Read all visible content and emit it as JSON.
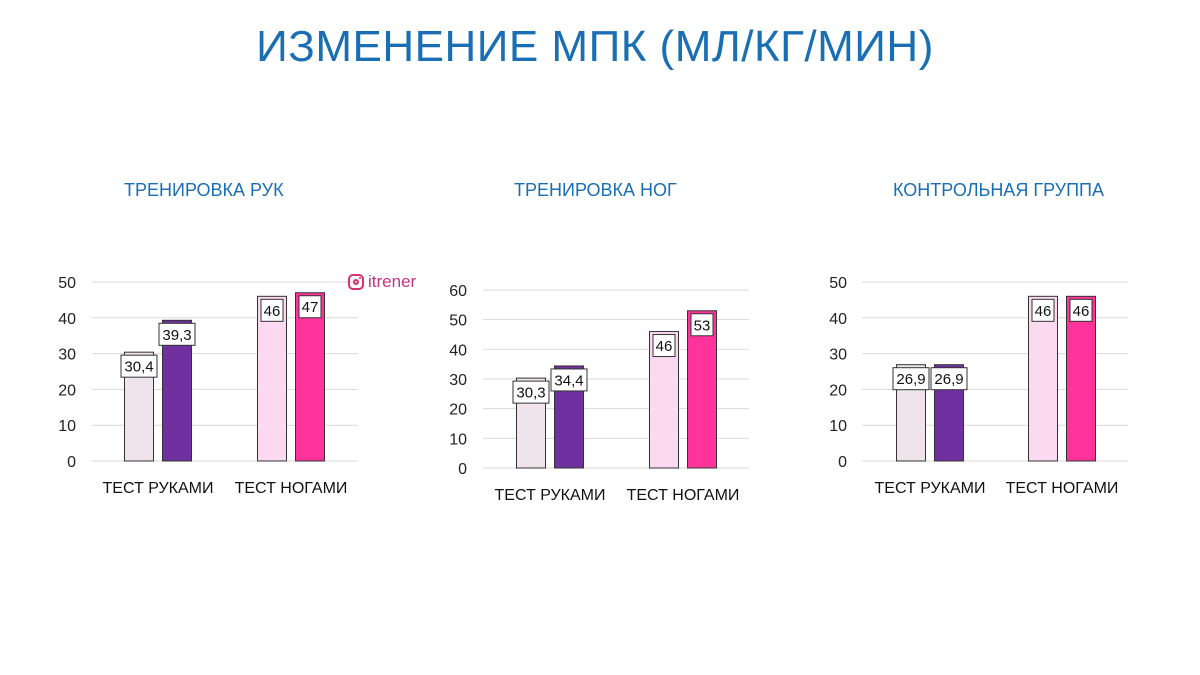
{
  "title": "ИЗМЕНЕНИЕ МПК (МЛ/КГ/МИН)",
  "watermark": "itrener",
  "colors": {
    "title": "#1a6fb4",
    "arms_before": "#f0e4ec",
    "arms_after": "#7030a0",
    "legs_before": "#fbd9f0",
    "legs_after": "#ff3399"
  },
  "chart_data": [
    {
      "type": "bar",
      "title": "ТРЕНИРОВКА РУК",
      "categories": [
        "ТЕСТ РУКАМИ",
        "ТЕСТ НОГАМИ"
      ],
      "values": [
        [
          30.4,
          39.3
        ],
        [
          46,
          47
        ]
      ],
      "labels": [
        [
          "30,4",
          "39,3"
        ],
        [
          "46",
          "47"
        ]
      ],
      "yticks": [
        "0",
        "10",
        "20",
        "30",
        "40",
        "50"
      ],
      "ylim": [
        0,
        50
      ],
      "grid": true,
      "legend": "none"
    },
    {
      "type": "bar",
      "title": "ТРЕНИРОВКА НОГ",
      "categories": [
        "ТЕСТ РУКАМИ",
        "ТЕСТ НОГАМИ"
      ],
      "values": [
        [
          30.3,
          34.4
        ],
        [
          46,
          53
        ]
      ],
      "labels": [
        [
          "30,3",
          "34,4"
        ],
        [
          "46",
          "53"
        ]
      ],
      "yticks": [
        "0",
        "10",
        "20",
        "30",
        "40",
        "50",
        "60"
      ],
      "ylim": [
        0,
        60
      ],
      "grid": true,
      "legend": "none"
    },
    {
      "type": "bar",
      "title": "КОНТРОЛЬНАЯ ГРУППА",
      "categories": [
        "ТЕСТ РУКАМИ",
        "ТЕСТ НОГАМИ"
      ],
      "values": [
        [
          26.9,
          26.9
        ],
        [
          46,
          46
        ]
      ],
      "labels": [
        [
          "26,9",
          "26,9"
        ],
        [
          "46",
          "46"
        ]
      ],
      "yticks": [
        "0",
        "10",
        "20",
        "30",
        "40",
        "50"
      ],
      "ylim": [
        0,
        50
      ],
      "grid": true,
      "legend": "none"
    }
  ]
}
